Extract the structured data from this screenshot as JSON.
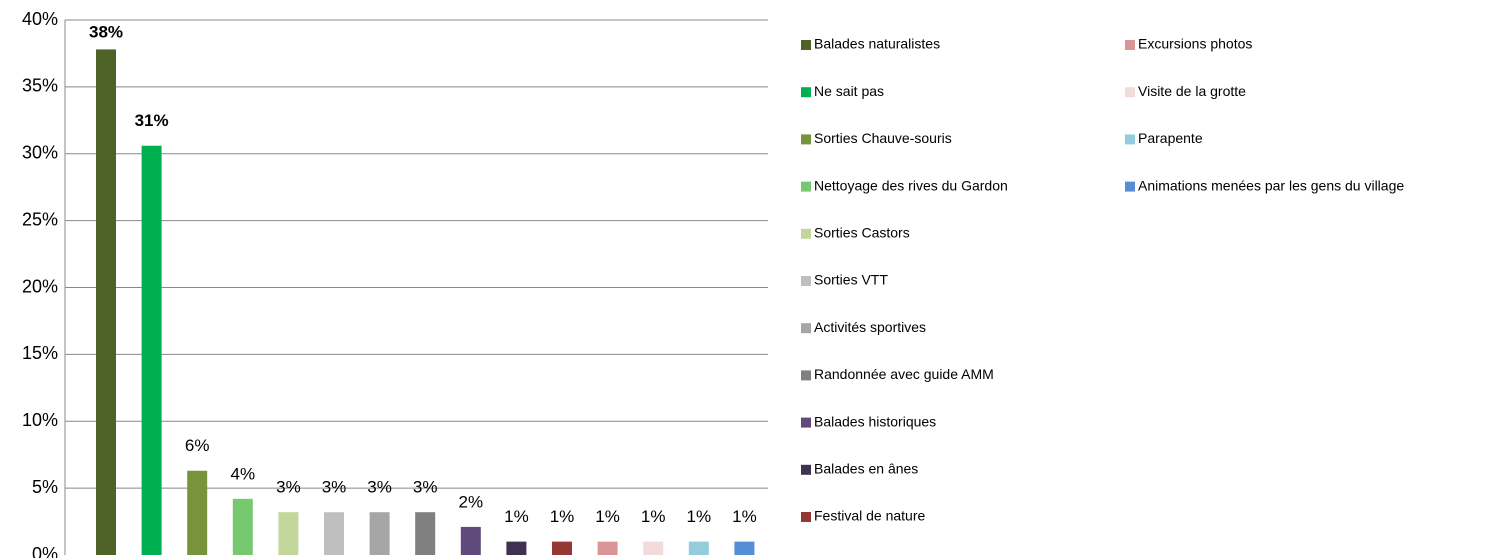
{
  "chart_data": {
    "type": "bar",
    "categories": [
      "Balades naturalistes",
      "Ne sait pas",
      "Sorties Chauve-souris",
      "Nettoyage des rives du Gardon",
      "Sorties Castors",
      "Sorties VTT",
      "Activités sportives",
      "Randonnée avec guide AMM",
      "Balades historiques",
      "Balades en ânes",
      "Festival de nature",
      "Excursions photos",
      "Visite de la grotte",
      "Parapente",
      "Animations menées par les gens du village"
    ],
    "values": [
      37.8,
      30.6,
      6.3,
      4.2,
      3.2,
      3.2,
      3.2,
      3.2,
      2.1,
      1.0,
      1.0,
      1.0,
      1.0,
      1.0,
      1.0
    ],
    "value_labels": [
      "38%",
      "31%",
      "6%",
      "4%",
      "3%",
      "3%",
      "3%",
      "3%",
      "2%",
      "1%",
      "1%",
      "1%",
      "1%",
      "1%",
      "1%"
    ],
    "colors": [
      "#4f6228",
      "#00b050",
      "#77933c",
      "#77c970",
      "#c3d69b",
      "#bfbfbf",
      "#a6a6a6",
      "#808080",
      "#604a7b",
      "#3f3151",
      "#953735",
      "#d99694",
      "#f2dcdb",
      "#93cddd",
      "#558ed5"
    ],
    "ylim": [
      0,
      40
    ],
    "yticks": [
      {
        "value": 0,
        "label": "0%"
      },
      {
        "value": 5,
        "label": "5%"
      },
      {
        "value": 10,
        "label": "10%"
      },
      {
        "value": 15,
        "label": "15%"
      },
      {
        "value": 20,
        "label": "20%"
      },
      {
        "value": 25,
        "label": "25%"
      },
      {
        "value": 30,
        "label": "30%"
      },
      {
        "value": 35,
        "label": "35%"
      },
      {
        "value": 40,
        "label": "40%"
      }
    ],
    "grid": true,
    "legend": "right"
  }
}
